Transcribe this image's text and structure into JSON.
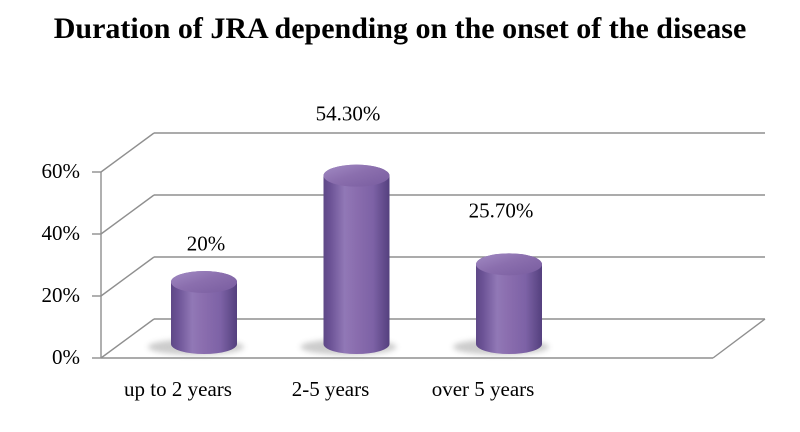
{
  "title": {
    "text": "Duration of JRA depending on the onset of the disease"
  },
  "chart_data": {
    "type": "bar",
    "subtype": "3d-cylinder",
    "title": "Duration of JRA depending on the onset of the disease",
    "categories": [
      "up to 2 years",
      "2-5 years",
      "over 5 years"
    ],
    "values": [
      20,
      54.3,
      25.7
    ],
    "data_labels": [
      "20%",
      "54.30%",
      "25.70%"
    ],
    "y_ticks": {
      "labels": [
        "0%",
        "20%",
        "40%",
        "60%"
      ],
      "values": [
        0,
        20,
        40,
        60
      ]
    },
    "ylim": [
      0,
      60
    ],
    "xlabel": "",
    "ylabel": "",
    "legend": "none",
    "grid": true,
    "colors": {
      "bar": "#7d62a6",
      "bar_light": "#9178b6",
      "bar_dark": "#54407e",
      "line": "#8f8f8f",
      "text": "#000000",
      "background": "#ffffff"
    }
  }
}
